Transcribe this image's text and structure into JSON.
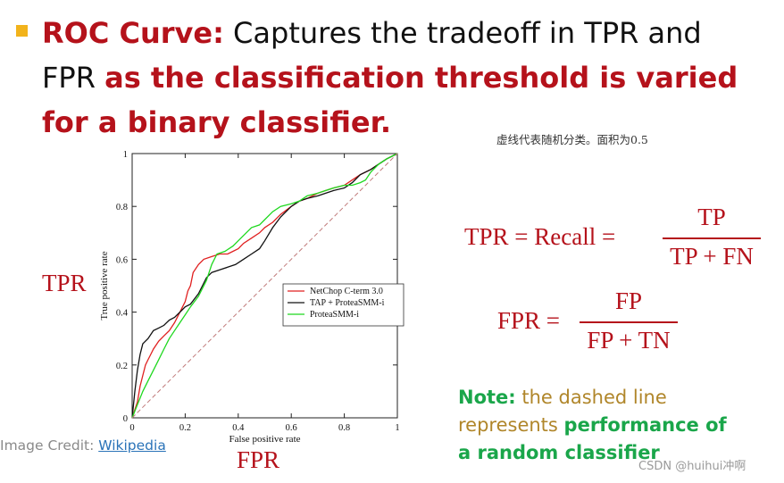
{
  "headline": {
    "part1": "ROC Curve:",
    "part2": " Captures the tradeoff in TPR and FPR ",
    "part3": "as the classification threshold is varied for a binary classifier."
  },
  "cn_note": "虚线代表随机分类。面积为0.5",
  "labels": {
    "tpr": "TPR",
    "fpr": "FPR"
  },
  "credit": {
    "text": "Image Credit: ",
    "link": "Wikipedia"
  },
  "formulas": {
    "tpr": {
      "lhs": "TPR = Recall =",
      "num": "TP",
      "den": "TP + FN"
    },
    "fpr": {
      "lhs": "FPR =",
      "num": "FP",
      "den": "FP + TN"
    }
  },
  "note": {
    "label": "Note:",
    "text1": " the dashed line",
    "text2": "represents ",
    "bold": "performance of a random classifier"
  },
  "watermark": "CSDN @huihui冲啊",
  "chart_data": {
    "type": "line",
    "xlabel": "False positive rate",
    "ylabel": "True positive rate",
    "xlim": [
      0,
      1
    ],
    "ylim": [
      0,
      1
    ],
    "xticks": [
      "0",
      "0.2",
      "0.4",
      "0.6",
      "0.8",
      "1"
    ],
    "yticks": [
      "0",
      "0.2",
      "0.4",
      "0.6",
      "0.8",
      "1"
    ],
    "grid": false,
    "legend_position": "center-right",
    "series": [
      {
        "name": "NetChop C-term 3.0",
        "color": "#e02020",
        "x": [
          0,
          0.02,
          0.03,
          0.04,
          0.05,
          0.06,
          0.07,
          0.08,
          0.1,
          0.12,
          0.14,
          0.16,
          0.18,
          0.2,
          0.21,
          0.22,
          0.23,
          0.25,
          0.27,
          0.3,
          0.33,
          0.36,
          0.38,
          0.4,
          0.42,
          0.45,
          0.48,
          0.5,
          0.53,
          0.56,
          0.6,
          0.63,
          0.66,
          0.7,
          0.73,
          0.76,
          0.8,
          0.83,
          0.86,
          0.9,
          0.93,
          0.96,
          1
        ],
        "y": [
          0,
          0.06,
          0.12,
          0.16,
          0.2,
          0.22,
          0.24,
          0.26,
          0.29,
          0.31,
          0.33,
          0.36,
          0.4,
          0.44,
          0.48,
          0.5,
          0.55,
          0.58,
          0.6,
          0.61,
          0.62,
          0.62,
          0.63,
          0.64,
          0.66,
          0.68,
          0.7,
          0.72,
          0.74,
          0.77,
          0.8,
          0.82,
          0.83,
          0.85,
          0.86,
          0.87,
          0.88,
          0.9,
          0.92,
          0.94,
          0.96,
          0.98,
          1
        ]
      },
      {
        "name": "TAP + ProteaSMM-i",
        "color": "#111111",
        "x": [
          0,
          0.01,
          0.02,
          0.03,
          0.04,
          0.06,
          0.08,
          0.1,
          0.12,
          0.14,
          0.16,
          0.18,
          0.2,
          0.22,
          0.25,
          0.28,
          0.3,
          0.33,
          0.36,
          0.39,
          0.42,
          0.45,
          0.48,
          0.5,
          0.53,
          0.56,
          0.6,
          0.63,
          0.66,
          0.7,
          0.73,
          0.76,
          0.8,
          0.83,
          0.86,
          0.9,
          0.93,
          0.96,
          1
        ],
        "y": [
          0,
          0.1,
          0.18,
          0.24,
          0.28,
          0.3,
          0.33,
          0.34,
          0.35,
          0.37,
          0.38,
          0.4,
          0.42,
          0.43,
          0.47,
          0.53,
          0.55,
          0.56,
          0.57,
          0.58,
          0.6,
          0.62,
          0.64,
          0.67,
          0.72,
          0.76,
          0.8,
          0.82,
          0.83,
          0.84,
          0.85,
          0.86,
          0.87,
          0.89,
          0.92,
          0.94,
          0.96,
          0.98,
          1
        ]
      },
      {
        "name": "ProteaSMM-i",
        "color": "#1fd81f",
        "x": [
          0,
          0.02,
          0.04,
          0.06,
          0.08,
          0.1,
          0.12,
          0.14,
          0.16,
          0.18,
          0.2,
          0.22,
          0.25,
          0.28,
          0.3,
          0.32,
          0.35,
          0.38,
          0.4,
          0.42,
          0.45,
          0.48,
          0.5,
          0.53,
          0.56,
          0.6,
          0.63,
          0.66,
          0.7,
          0.73,
          0.76,
          0.8,
          0.83,
          0.86,
          0.88,
          0.9,
          0.93,
          0.96,
          1
        ],
        "y": [
          0,
          0.05,
          0.1,
          0.14,
          0.18,
          0.22,
          0.26,
          0.3,
          0.33,
          0.36,
          0.39,
          0.42,
          0.46,
          0.52,
          0.58,
          0.62,
          0.63,
          0.65,
          0.67,
          0.69,
          0.72,
          0.73,
          0.75,
          0.78,
          0.8,
          0.81,
          0.82,
          0.84,
          0.85,
          0.86,
          0.87,
          0.88,
          0.88,
          0.89,
          0.9,
          0.93,
          0.96,
          0.98,
          1
        ]
      },
      {
        "name": "",
        "color": "#c07a7a",
        "dashed": true,
        "x": [
          0,
          1
        ],
        "y": [
          0,
          1
        ]
      }
    ]
  }
}
